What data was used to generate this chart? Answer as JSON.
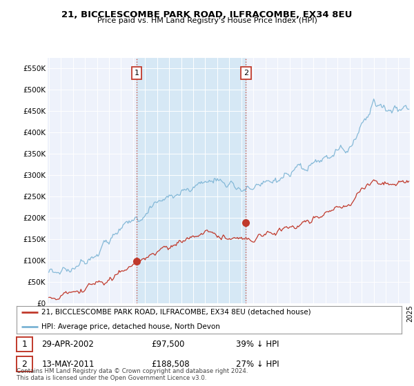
{
  "title": "21, BICCLESCOMBE PARK ROAD, ILFRACOMBE, EX34 8EU",
  "subtitle": "Price paid vs. HM Land Registry's House Price Index (HPI)",
  "legend_line1": "21, BICCLESCOMBE PARK ROAD, ILFRACOMBE, EX34 8EU (detached house)",
  "legend_line2": "HPI: Average price, detached house, North Devon",
  "purchase1_date": "29-APR-2002",
  "purchase1_price": 97500,
  "purchase1_label": "39% ↓ HPI",
  "purchase2_date": "13-MAY-2011",
  "purchase2_price": 188508,
  "purchase2_label": "27% ↓ HPI",
  "footer": "Contains HM Land Registry data © Crown copyright and database right 2024.\nThis data is licensed under the Open Government Licence v3.0.",
  "hpi_color": "#7ab3d4",
  "price_color": "#c0392b",
  "vline_color": "#c0392b",
  "shade_color": "#d6e8f5",
  "background_color": "#ffffff",
  "plot_bg_color": "#eef2fb",
  "ylim": [
    0,
    575000
  ],
  "purchase1_year": 2002.29,
  "purchase2_year": 2011.37
}
